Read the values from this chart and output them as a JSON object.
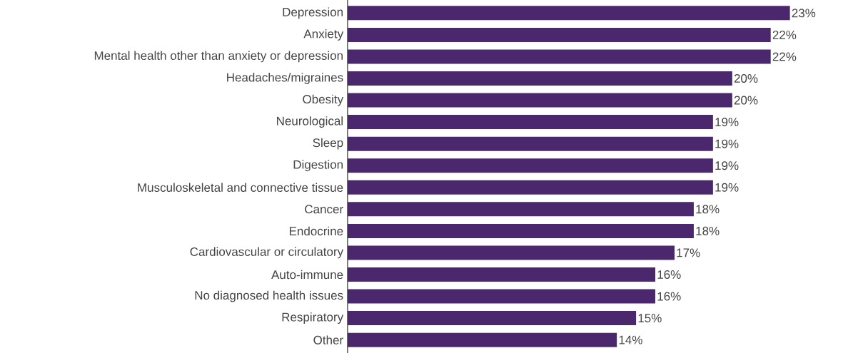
{
  "chart_data": {
    "type": "bar",
    "orientation": "horizontal",
    "categories": [
      "Depression",
      "Anxiety",
      "Mental health other than anxiety or depression",
      "Headaches/migraines",
      "Obesity",
      "Neurological",
      "Sleep",
      "Digestion",
      "Musculoskeletal and connective tissue",
      "Cancer",
      "Endocrine",
      "Cardiovascular or circulatory",
      "Auto-immune",
      "No diagnosed health issues",
      "Respiratory",
      "Other"
    ],
    "values": [
      23,
      22,
      22,
      20,
      20,
      19,
      19,
      19,
      19,
      18,
      18,
      17,
      16,
      16,
      15,
      14
    ],
    "value_labels": [
      "23%",
      "22%",
      "22%",
      "20%",
      "20%",
      "19%",
      "19%",
      "19%",
      "19%",
      "18%",
      "18%",
      "17%",
      "16%",
      "16%",
      "15%",
      "14%"
    ],
    "color": "#4b286d"
  }
}
